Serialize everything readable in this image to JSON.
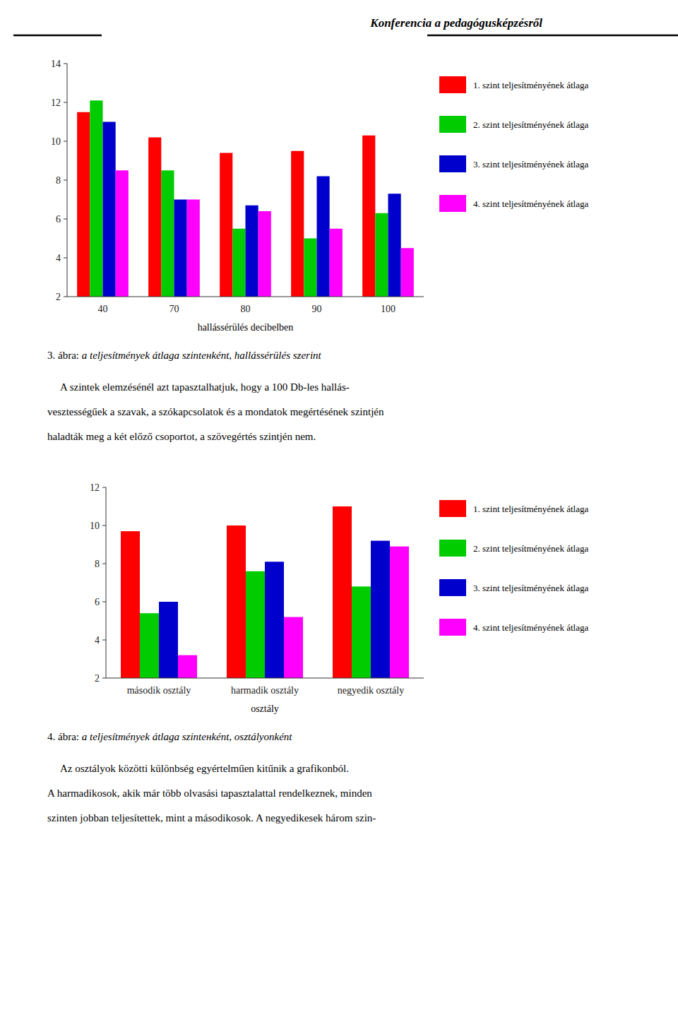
{
  "header": "Konferencia a pedagógusképzésről",
  "chart_data": [
    {
      "type": "bar",
      "categories": [
        "40",
        "70",
        "80",
        "90",
        "100"
      ],
      "series": [
        {
          "name": "1. szint teljesítményének átlaga",
          "color": "#FF0000",
          "values": [
            11.5,
            10.2,
            9.4,
            9.5,
            10.3
          ]
        },
        {
          "name": "2. szint teljesítményének átlaga",
          "color": "#00CC00",
          "values": [
            12.1,
            8.5,
            5.5,
            5.0,
            6.3
          ]
        },
        {
          "name": "3. szint teljesítményének átlaga",
          "color": "#0000CC",
          "values": [
            11.0,
            7.0,
            6.7,
            8.2,
            7.3
          ]
        },
        {
          "name": "4. szint teljesítményének átlaga",
          "color": "#FF00FF",
          "values": [
            8.5,
            7.0,
            6.4,
            5.5,
            4.5
          ]
        }
      ],
      "ylim": [
        2,
        14
      ],
      "yticks": [
        2,
        4,
        6,
        8,
        10,
        12,
        14
      ],
      "xlabel": "hallássérülés decibelben",
      "grid": false,
      "legend": "right",
      "caption": [
        "3. ábra: ",
        "a teljesítmények átlaga szintенként, hallássérülés szerint"
      ],
      "text": [
        "     A szintek elemzésénél azt tapasztalhatjuk, hogy a 100 Db-les hallás-",
        "vesztességűek a szavak, a szókapcsolatok és a mondatok megértésének szintjén",
        "haladták meg a két előző csoportot, a szövegértés szintjén nem."
      ]
    },
    {
      "type": "bar",
      "categories": [
        "második osztály",
        "harmadik osztály",
        "negyedik osztály"
      ],
      "series": [
        {
          "name": "1. szint teljesítményének átlaga",
          "color": "#FF0000",
          "values": [
            9.7,
            10.0,
            11.0
          ]
        },
        {
          "name": "2. szint teljesítményének átlaga",
          "color": "#00CC00",
          "values": [
            5.4,
            7.6,
            6.8
          ]
        },
        {
          "name": "3. szint teljesítményének átlaga",
          "color": "#0000CC",
          "values": [
            6.0,
            8.1,
            9.2
          ]
        },
        {
          "name": "4. szint teljesítményének átlaga",
          "color": "#FF00FF",
          "values": [
            3.2,
            5.2,
            8.9
          ]
        }
      ],
      "ylim": [
        2,
        12
      ],
      "yticks": [
        2,
        4,
        6,
        8,
        10,
        12
      ],
      "xlabel": "osztály",
      "grid": false,
      "legend": "right",
      "caption": [
        "4. ábra: ",
        "a teljesítmények átlaga szintенként, osztályonként"
      ],
      "text": [
        "     Az osztályok közötti különbség egyértelműen kitűnik a grafikonból.",
        "A harmadikosok, akik már több olvasási tapasztalattal rendelkeznek, minden",
        "szinten jobban teljesítettek, mint a másodikosok. A negyedikesek három szin-"
      ]
    }
  ]
}
